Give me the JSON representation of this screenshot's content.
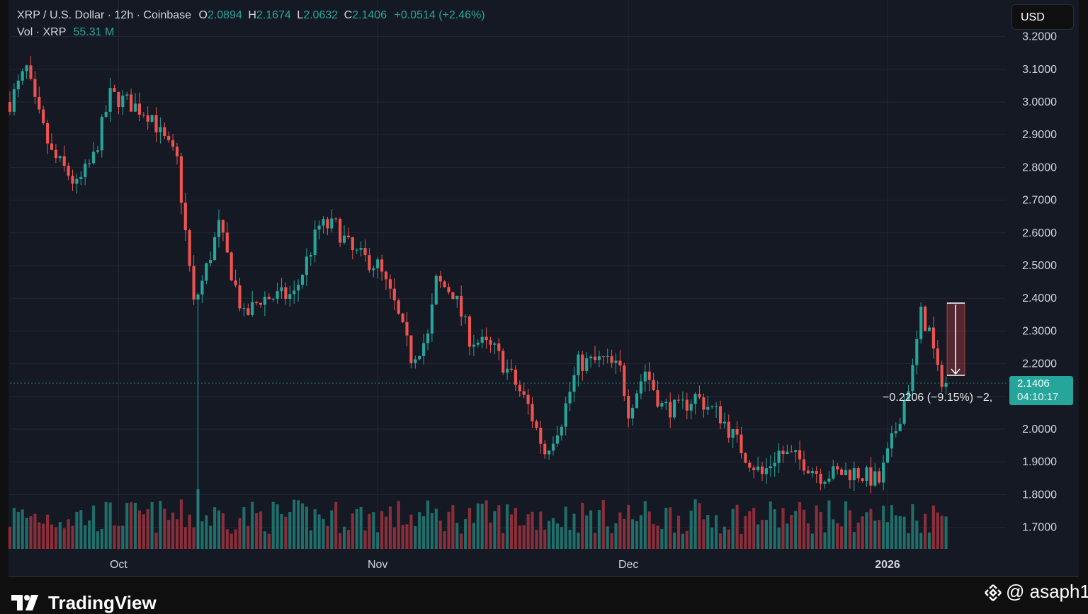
{
  "legend": {
    "symbol": "XRP / U.S. Dollar · 12h · Coinbase",
    "open_label": "O",
    "open": "2.0894",
    "high_label": "H",
    "high": "2.1674",
    "low_label": "L",
    "low": "2.0632",
    "close_label": "C",
    "close": "2.1406",
    "change": "+0.0514 (+2.46%)",
    "vol_label": "Vol · XRP",
    "vol_value": "55.31 M"
  },
  "currency_button": "USD",
  "price_tag": {
    "price": "2.1406",
    "countdown": "04:10:17"
  },
  "measure_label": "−0.2206 (−9.15%) −2,",
  "brand": "TradingView",
  "credit": "@ asaph1",
  "colors": {
    "up": "#26a69a",
    "down": "#ef5350",
    "vol_up": "#1f6e6a",
    "vol_down": "#8a2f3a",
    "grid": "#232734",
    "axis_text": "#d1d4dc"
  },
  "chart_data": {
    "type": "candlestick",
    "interval": "12h",
    "y_axis": {
      "ticks": [
        "3.2000",
        "3.1000",
        "3.0000",
        "2.9000",
        "2.8000",
        "2.7000",
        "2.6000",
        "2.5000",
        "2.4000",
        "2.3000",
        "2.2000",
        "2.1000",
        "2.0000",
        "1.9000",
        "1.8000",
        "1.7000"
      ],
      "range": [
        1.64,
        3.22
      ],
      "position": "right"
    },
    "x_axis": {
      "labels": [
        "Oct",
        "Nov",
        "Dec",
        "2026"
      ],
      "label_dates": [
        "2025-10-01",
        "2025-11-01",
        "2025-12-01",
        "2026-01-01"
      ]
    },
    "start_date": "2025-09-18",
    "anchors": [
      [
        "2025-09-18",
        3.0
      ],
      [
        "2025-09-20",
        3.1
      ],
      [
        "2025-09-21",
        2.99
      ],
      [
        "2025-09-23",
        2.84
      ],
      [
        "2025-09-25",
        2.78
      ],
      [
        "2025-09-26",
        2.74
      ],
      [
        "2025-09-28",
        2.83
      ],
      [
        "2025-09-30",
        3.02
      ],
      [
        "2025-10-02",
        3.0
      ],
      [
        "2025-10-05",
        2.96
      ],
      [
        "2025-10-06",
        2.9
      ],
      [
        "2025-10-08",
        2.82
      ],
      [
        "2025-10-10",
        2.38
      ],
      [
        "2025-10-11",
        2.45
      ],
      [
        "2025-10-13",
        2.62
      ],
      [
        "2025-10-16",
        2.34
      ],
      [
        "2025-10-18",
        2.4
      ],
      [
        "2025-10-22",
        2.41
      ],
      [
        "2025-10-25",
        2.62
      ],
      [
        "2025-10-27",
        2.62
      ],
      [
        "2025-10-29",
        2.54
      ],
      [
        "2025-11-01",
        2.5
      ],
      [
        "2025-11-03",
        2.38
      ],
      [
        "2025-11-05",
        2.22
      ],
      [
        "2025-11-07",
        2.28
      ],
      [
        "2025-11-08",
        2.45
      ],
      [
        "2025-11-10",
        2.42
      ],
      [
        "2025-11-12",
        2.28
      ],
      [
        "2025-11-15",
        2.24
      ],
      [
        "2025-11-17",
        2.16
      ],
      [
        "2025-11-19",
        2.07
      ],
      [
        "2025-11-21",
        1.93
      ],
      [
        "2025-11-23",
        2.03
      ],
      [
        "2025-11-25",
        2.2
      ],
      [
        "2025-11-28",
        2.21
      ],
      [
        "2025-11-30",
        2.18
      ],
      [
        "2025-12-01",
        2.06
      ],
      [
        "2025-12-03",
        2.18
      ],
      [
        "2025-12-05",
        2.07
      ],
      [
        "2025-12-07",
        2.06
      ],
      [
        "2025-12-09",
        2.1
      ],
      [
        "2025-12-12",
        2.04
      ],
      [
        "2025-12-15",
        1.92
      ],
      [
        "2025-12-17",
        1.86
      ],
      [
        "2025-12-19",
        1.93
      ],
      [
        "2025-12-22",
        1.9
      ],
      [
        "2025-12-24",
        1.86
      ],
      [
        "2025-12-28",
        1.87
      ],
      [
        "2025-12-31",
        1.84
      ],
      [
        "2026-01-02",
        2.0
      ],
      [
        "2026-01-04",
        2.18
      ],
      [
        "2026-01-05",
        2.35
      ],
      [
        "2026-01-06",
        2.3
      ],
      [
        "2026-01-07",
        2.17
      ],
      [
        "2026-01-08",
        2.1406
      ]
    ],
    "volume_ylabel": "Vol · XRP"
  }
}
